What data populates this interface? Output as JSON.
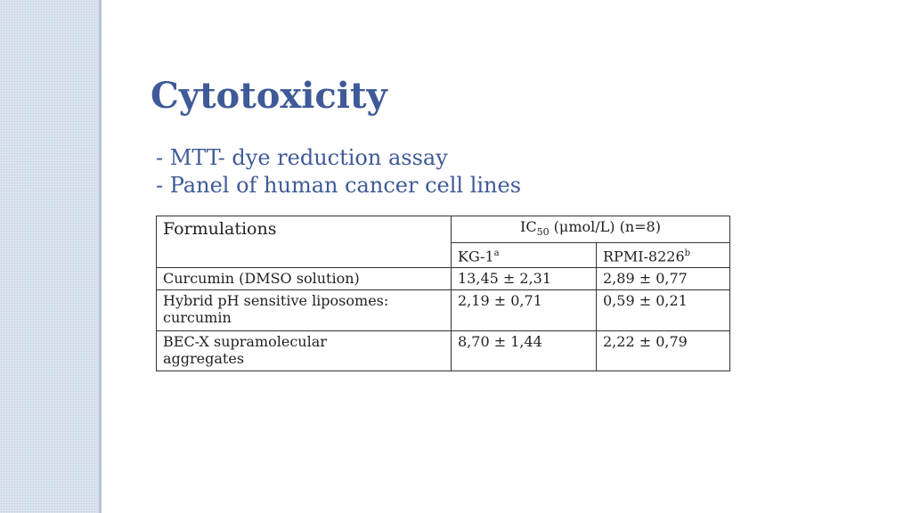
{
  "slide": {
    "title": "Cytotoxicity",
    "bullets": [
      "- MTT- dye reduction assay",
      "- Panel of human cancer cell lines"
    ]
  },
  "table": {
    "header": {
      "formulations": "Formulations",
      "ic50_prefix": "IC",
      "ic50_sub": "50",
      "ic50_suffix": " (μmol/L) (n=8)",
      "col1": "KG-1",
      "col1_sup": "a",
      "col2": "RPMI-8226",
      "col2_sup": "b"
    },
    "rows": [
      {
        "formulation": "Curcumin (DMSO solution)",
        "kg1": "13,45 ± 2,31",
        "rpmi": "2,89 ± 0,77"
      },
      {
        "formulation": "Hybrid pH sensitive liposomes: curcumin",
        "kg1": "2,19 ± 0,71",
        "rpmi": "0,59 ± 0,21"
      },
      {
        "formulation": "BEC-X supramolecular aggregates",
        "kg1": "8,70 ± 1,44",
        "rpmi": "2,22 ± 0,79"
      }
    ]
  },
  "colors": {
    "title": "#3f5a98",
    "sidebar": "#dde6f0"
  }
}
